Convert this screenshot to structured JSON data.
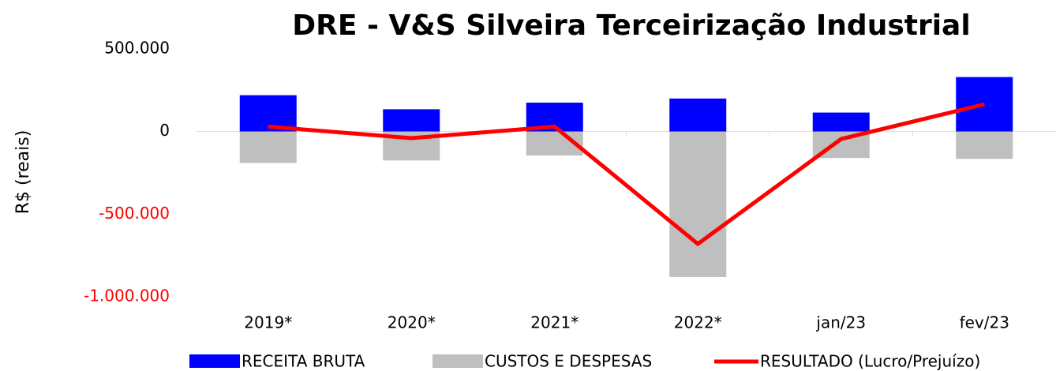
{
  "chart_data": {
    "type": "bar_line",
    "title": "DRE - V&S Silveira Terceirização Industrial",
    "ylabel": "R$ (reais)",
    "categories": [
      "2019*",
      "2020*",
      "2021*",
      "2022*",
      "jan/23",
      "fev/23"
    ],
    "series": [
      {
        "name": "RECEITA BRUTA",
        "type": "bar",
        "color": "#0000ff",
        "values": [
          220000,
          135000,
          175000,
          200000,
          115000,
          330000
        ]
      },
      {
        "name": "CUSTOS E DESPESAS",
        "type": "bar",
        "color": "#bfbfbf",
        "values": [
          -190000,
          -175000,
          -145000,
          -880000,
          -160000,
          -165000
        ]
      },
      {
        "name": "RESULTADO (Lucro/Prejuízo)",
        "type": "line",
        "color": "#ff0000",
        "values": [
          30000,
          -40000,
          30000,
          -680000,
          -45000,
          165000
        ]
      }
    ],
    "ylim": [
      -1000000,
      500000
    ],
    "yticks": [
      {
        "value": -1000000,
        "label": "-1.000.000"
      },
      {
        "value": -500000,
        "label": "-500.000"
      },
      0,
      {
        "value": 500000,
        "label": "500.000"
      }
    ],
    "negative_tick_color": "#ff0000",
    "legend": "bottom"
  }
}
